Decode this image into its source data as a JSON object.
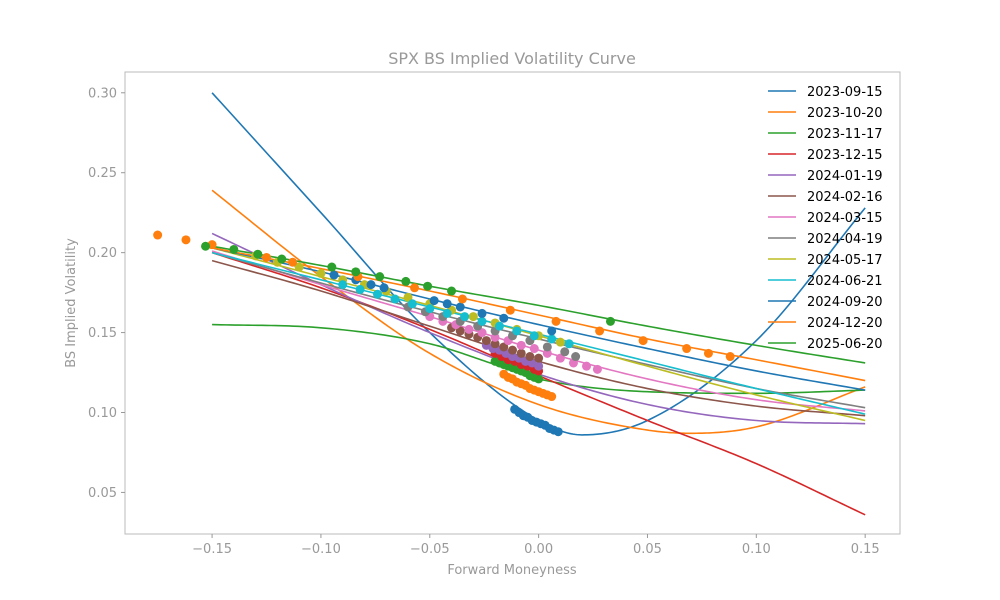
{
  "chart_data": {
    "type": "line",
    "title": "SPX BS Implied Volatility Curve",
    "xlabel": "Forward Moneyness",
    "ylabel": "BS Implied Volatility",
    "xlim": [
      -0.19,
      0.166
    ],
    "ylim": [
      0.024,
      0.313
    ],
    "xticks": [
      -0.15,
      -0.1,
      -0.05,
      0.0,
      0.05,
      0.1,
      0.15
    ],
    "xtick_labels": [
      "−0.15",
      "−0.10",
      "−0.05",
      "0.00",
      "0.05",
      "0.10",
      "0.15"
    ],
    "yticks": [
      0.05,
      0.1,
      0.15,
      0.2,
      0.25,
      0.3
    ],
    "ytick_labels": [
      "0.05",
      "0.10",
      "0.15",
      "0.20",
      "0.25",
      "0.30"
    ],
    "grid": false,
    "legend_position": "upper right",
    "series": [
      {
        "name": "2023-09-15",
        "color": "#1f77b4",
        "line": {
          "x": [
            -0.15,
            -0.1,
            -0.05,
            0.0,
            0.02,
            0.05,
            0.1,
            0.15
          ],
          "y": [
            0.3,
            0.225,
            0.15,
            0.095,
            0.086,
            0.095,
            0.145,
            0.228
          ]
        },
        "markers": {
          "x": [
            -0.011,
            -0.009,
            -0.007,
            -0.005,
            -0.003,
            -0.001,
            0.001,
            0.003,
            0.005,
            0.007,
            0.009
          ],
          "y": [
            0.102,
            0.1,
            0.098,
            0.097,
            0.095,
            0.094,
            0.093,
            0.092,
            0.09,
            0.089,
            0.088
          ]
        }
      },
      {
        "name": "2023-10-20",
        "color": "#ff7f0e",
        "line": {
          "x": [
            -0.15,
            -0.1,
            -0.05,
            0.0,
            0.05,
            0.07,
            0.1,
            0.15
          ],
          "y": [
            0.239,
            0.185,
            0.137,
            0.105,
            0.089,
            0.087,
            0.091,
            0.116
          ]
        },
        "markers": {
          "x": [
            -0.016,
            -0.014,
            -0.012,
            -0.01,
            -0.008,
            -0.006,
            -0.004,
            -0.002,
            0.0,
            0.002,
            0.004,
            0.006
          ],
          "y": [
            0.124,
            0.122,
            0.121,
            0.119,
            0.118,
            0.117,
            0.115,
            0.114,
            0.113,
            0.112,
            0.111,
            0.11
          ]
        }
      },
      {
        "name": "2023-11-17",
        "color": "#2ca02c",
        "line": {
          "x": [
            -0.15,
            -0.1,
            -0.05,
            -0.02,
            0.0,
            0.05,
            0.1,
            0.15
          ],
          "y": [
            0.155,
            0.153,
            0.143,
            0.13,
            0.121,
            0.113,
            0.112,
            0.114
          ]
        },
        "markers": {
          "x": [
            -0.02,
            -0.018,
            -0.016,
            -0.014,
            -0.012,
            -0.01,
            -0.008,
            -0.006,
            -0.004,
            -0.002,
            0.0
          ],
          "y": [
            0.132,
            0.131,
            0.13,
            0.129,
            0.128,
            0.127,
            0.126,
            0.125,
            0.123,
            0.122,
            0.121
          ]
        }
      },
      {
        "name": "2023-12-15",
        "color": "#d62728",
        "line": {
          "x": [
            -0.15,
            -0.1,
            -0.05,
            0.0,
            0.05,
            0.1,
            0.15
          ],
          "y": [
            0.2,
            0.178,
            0.152,
            0.123,
            0.095,
            0.068,
            0.036
          ]
        },
        "markers": {
          "x": [
            -0.02,
            -0.017,
            -0.014,
            -0.011,
            -0.008,
            -0.005,
            -0.002,
            0.0
          ],
          "y": [
            0.137,
            0.135,
            0.133,
            0.132,
            0.13,
            0.129,
            0.127,
            0.126
          ]
        }
      },
      {
        "name": "2024-01-19",
        "color": "#9467bd",
        "line": {
          "x": [
            -0.15,
            -0.1,
            -0.05,
            0.0,
            0.05,
            0.1,
            0.15
          ],
          "y": [
            0.212,
            0.18,
            0.15,
            0.124,
            0.105,
            0.095,
            0.093
          ]
        },
        "markers": {
          "x": [
            -0.024,
            -0.021,
            -0.018,
            -0.015,
            -0.012,
            -0.009,
            -0.006,
            -0.003,
            0.0
          ],
          "y": [
            0.142,
            0.14,
            0.139,
            0.137,
            0.135,
            0.134,
            0.132,
            0.131,
            0.129
          ]
        }
      },
      {
        "name": "2024-02-16",
        "color": "#8c564b",
        "line": {
          "x": [
            -0.15,
            -0.1,
            -0.05,
            0.0,
            0.05,
            0.1,
            0.15
          ],
          "y": [
            0.195,
            0.176,
            0.154,
            0.132,
            0.115,
            0.104,
            0.098
          ]
        },
        "markers": {
          "x": [
            -0.04,
            -0.036,
            -0.032,
            -0.028,
            -0.024,
            -0.02,
            -0.016,
            -0.012,
            -0.008,
            -0.004,
            0.0
          ],
          "y": [
            0.153,
            0.151,
            0.149,
            0.147,
            0.145,
            0.143,
            0.141,
            0.139,
            0.137,
            0.135,
            0.134
          ]
        }
      },
      {
        "name": "2024-03-15",
        "color": "#e377c2",
        "line": {
          "x": [
            -0.15,
            -0.1,
            -0.05,
            0.0,
            0.05,
            0.1,
            0.15
          ],
          "y": [
            0.201,
            0.18,
            0.16,
            0.139,
            0.121,
            0.108,
            0.101
          ]
        },
        "markers": {
          "x": [
            -0.05,
            -0.044,
            -0.038,
            -0.032,
            -0.026,
            -0.02,
            -0.014,
            -0.008,
            -0.002,
            0.004,
            0.01,
            0.016,
            0.022,
            0.027
          ],
          "y": [
            0.16,
            0.157,
            0.155,
            0.152,
            0.15,
            0.147,
            0.145,
            0.142,
            0.14,
            0.137,
            0.134,
            0.131,
            0.129,
            0.127
          ]
        }
      },
      {
        "name": "2024-04-19",
        "color": "#7f7f7f",
        "line": {
          "x": [
            -0.15,
            -0.1,
            -0.05,
            0.0,
            0.05,
            0.1,
            0.15
          ],
          "y": [
            0.2,
            0.181,
            0.163,
            0.146,
            0.13,
            0.115,
            0.103
          ]
        },
        "markers": {
          "x": [
            -0.06,
            -0.052,
            -0.044,
            -0.036,
            -0.028,
            -0.02,
            -0.012,
            -0.004,
            0.004,
            0.012,
            0.017
          ],
          "y": [
            0.166,
            0.163,
            0.16,
            0.157,
            0.154,
            0.151,
            0.148,
            0.145,
            0.141,
            0.138,
            0.135
          ]
        }
      },
      {
        "name": "2024-05-17",
        "color": "#bcbd22",
        "line": {
          "x": [
            -0.15,
            -0.1,
            -0.05,
            0.0,
            0.05,
            0.1,
            0.15
          ],
          "y": [
            0.203,
            0.185,
            0.167,
            0.148,
            0.129,
            0.111,
            0.095
          ]
        },
        "markers": {
          "x": [
            -0.13,
            -0.12,
            -0.11,
            -0.1,
            -0.09,
            -0.08,
            -0.07,
            -0.06,
            -0.05,
            -0.04,
            -0.03,
            -0.02,
            -0.01,
            0.0,
            0.01
          ],
          "y": [
            0.198,
            0.194,
            0.191,
            0.187,
            0.183,
            0.18,
            0.176,
            0.172,
            0.168,
            0.164,
            0.16,
            0.156,
            0.152,
            0.148,
            0.144
          ]
        }
      },
      {
        "name": "2024-06-21",
        "color": "#17becf",
        "line": {
          "x": [
            -0.15,
            -0.1,
            -0.05,
            0.0,
            0.05,
            0.1,
            0.15
          ],
          "y": [
            0.2,
            0.183,
            0.166,
            0.149,
            0.132,
            0.115,
            0.099
          ]
        },
        "markers": {
          "x": [
            -0.09,
            -0.082,
            -0.074,
            -0.066,
            -0.058,
            -0.05,
            -0.042,
            -0.034,
            -0.026,
            -0.018,
            -0.01,
            -0.002,
            0.006,
            0.014
          ],
          "y": [
            0.18,
            0.177,
            0.174,
            0.171,
            0.168,
            0.165,
            0.162,
            0.16,
            0.157,
            0.154,
            0.151,
            0.148,
            0.146,
            0.143
          ]
        }
      },
      {
        "name": "2024-09-20",
        "color": "#1f77b4",
        "line": {
          "x": [
            -0.15,
            -0.1,
            -0.05,
            0.0,
            0.05,
            0.1,
            0.15
          ],
          "y": [
            0.203,
            0.188,
            0.171,
            0.155,
            0.14,
            0.126,
            0.114
          ]
        },
        "markers": {
          "x": [
            -0.094,
            -0.084,
            -0.077,
            -0.071,
            -0.048,
            -0.042,
            -0.036,
            -0.026,
            -0.016,
            0.006
          ],
          "y": [
            0.186,
            0.183,
            0.18,
            0.178,
            0.17,
            0.168,
            0.166,
            0.162,
            0.159,
            0.151
          ]
        }
      },
      {
        "name": "2024-12-20",
        "color": "#ff7f0e",
        "line": {
          "x": [
            -0.15,
            -0.1,
            -0.05,
            0.0,
            0.05,
            0.1,
            0.15
          ],
          "y": [
            0.203,
            0.19,
            0.176,
            0.161,
            0.146,
            0.133,
            0.12
          ]
        },
        "markers": {
          "x": [
            -0.175,
            -0.162,
            -0.15,
            -0.125,
            -0.113,
            -0.083,
            -0.057,
            -0.035,
            -0.013,
            0.008,
            0.028,
            0.048,
            0.068,
            0.078,
            0.088
          ],
          "y": [
            0.211,
            0.208,
            0.205,
            0.197,
            0.194,
            0.185,
            0.178,
            0.171,
            0.164,
            0.157,
            0.151,
            0.145,
            0.14,
            0.137,
            0.135
          ]
        }
      },
      {
        "name": "2025-06-20",
        "color": "#2ca02c",
        "line": {
          "x": [
            -0.15,
            -0.1,
            -0.05,
            0.0,
            0.05,
            0.1,
            0.15
          ],
          "y": [
            0.204,
            0.192,
            0.179,
            0.167,
            0.154,
            0.142,
            0.131
          ]
        },
        "markers": {
          "x": [
            -0.153,
            -0.14,
            -0.129,
            -0.118,
            -0.095,
            -0.084,
            -0.073,
            -0.061,
            -0.051,
            -0.04,
            0.033
          ],
          "y": [
            0.204,
            0.202,
            0.199,
            0.196,
            0.191,
            0.188,
            0.185,
            0.182,
            0.179,
            0.176,
            0.157
          ]
        }
      }
    ]
  }
}
